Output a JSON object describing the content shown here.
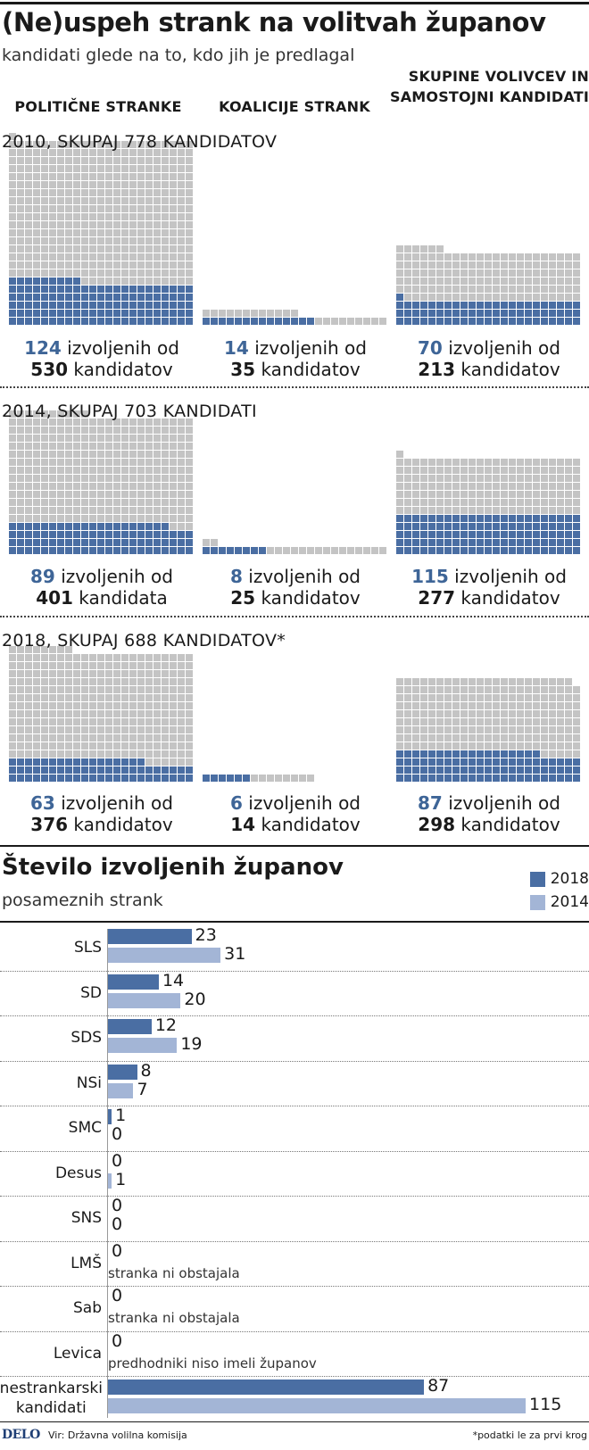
{
  "header": {
    "title": "(Ne)uspeh strank na volitvah županov",
    "subtitle": "kandidati glede na to, kdo jih je predlagal",
    "columns": [
      "POLITIČNE STRANKE",
      "KOALICIJE STRANK",
      "SKUPINE VOLIVCEV IN\nSAMOSTOJNI KANDIDATI"
    ]
  },
  "colors": {
    "elected": "#4a6ea3",
    "candidates": "#c4c4c4",
    "bar_2018": "#4a6ea3",
    "bar_2014": "#a3b5d6",
    "highlight_text": "#3e6597"
  },
  "waffle_sections": [
    {
      "year": "2010",
      "total_label": ", SKUPAJ 778 KANDIDATOV",
      "groups": [
        {
          "elected": 124,
          "candidates": 530,
          "num": "124",
          "text1": " izvoljenih od",
          "num2": "530",
          "text2": " kandidatov"
        },
        {
          "elected": 14,
          "candidates": 35,
          "num": "14",
          "text1": " izvoljenih od",
          "num2": "35",
          "text2": " kandidatov"
        },
        {
          "elected": 70,
          "candidates": 213,
          "num": "70",
          "text1": " izvoljenih od",
          "num2": "213",
          "text2": " kandidatov"
        }
      ]
    },
    {
      "year": "2014",
      "total_label": ", SKUPAJ 703 KANDIDATI",
      "groups": [
        {
          "elected": 89,
          "candidates": 401,
          "num": "89",
          "text1": " izvoljenih od",
          "num2": "401",
          "text2": " kandidata"
        },
        {
          "elected": 8,
          "candidates": 25,
          "num": "8",
          "text1": " izvoljenih od",
          "num2": "25",
          "text2": " kandidatov"
        },
        {
          "elected": 115,
          "candidates": 277,
          "num": "115",
          "text1": " izvoljenih od",
          "num2": "277",
          "text2": " kandidatov"
        }
      ]
    },
    {
      "year": "2018",
      "total_label": ", SKUPAJ 688 KANDIDATOV*",
      "groups": [
        {
          "elected": 63,
          "candidates": 376,
          "num": "63",
          "text1": " izvoljenih od",
          "num2": "376",
          "text2": " kandidatov"
        },
        {
          "elected": 6,
          "candidates": 14,
          "num": "6",
          "text1": " izvoljenih od",
          "num2": "14",
          "text2": " kandidatov"
        },
        {
          "elected": 87,
          "candidates": 298,
          "num": "87",
          "text1": " izvoljenih od",
          "num2": "298",
          "text2": " kandidatov"
        }
      ]
    }
  ],
  "chart_data": {
    "type": "bar",
    "title": "Število izvoljenih županov",
    "subtitle": "posameznih strank",
    "categories": [
      "SLS",
      "SD",
      "SDS",
      "NSi",
      "SMC",
      "Desus",
      "SNS",
      "LMŠ",
      "Sab",
      "Levica",
      "nestrankarski\nkandidati"
    ],
    "series": [
      {
        "name": "2018",
        "values": [
          23,
          14,
          12,
          8,
          1,
          0,
          0,
          0,
          0,
          0,
          87
        ]
      },
      {
        "name": "2014",
        "values": [
          31,
          20,
          19,
          7,
          0,
          1,
          0,
          null,
          null,
          null,
          115
        ]
      }
    ],
    "notes": [
      "",
      "",
      "",
      "",
      "",
      "",
      "",
      "stranka ni obstajala",
      "stranka ni obstajala",
      "predhodniki niso imeli županov",
      ""
    ],
    "legend": [
      "2018",
      "2014"
    ]
  },
  "footer": {
    "brand": "DELO",
    "source": "Vir: Državna volilna komisija",
    "note": "*podatki le za prvi krog"
  }
}
